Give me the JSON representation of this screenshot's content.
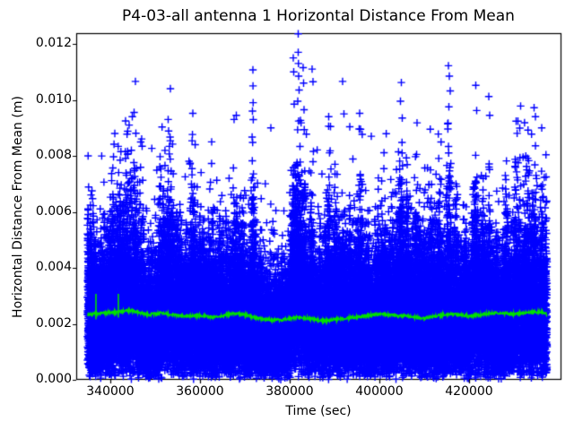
{
  "chart_data": {
    "type": "scatter",
    "title": "P4-03-all antenna 1 Horizontal Distance From Mean",
    "xlabel": "Time (sec)",
    "ylabel": "Horizontal Distance From Mean (m)",
    "grid": false,
    "legend": null,
    "xlim": [
      332400,
      440400
    ],
    "ylim": [
      0,
      0.012352
    ],
    "x_ticks": [
      340000,
      360000,
      380000,
      400000,
      420000
    ],
    "x_tick_labels": [
      "340000",
      "360000",
      "380000",
      "400000",
      "420000"
    ],
    "y_ticks": [
      0.0,
      0.002,
      0.004,
      0.006,
      0.008,
      0.01,
      0.012
    ],
    "y_tick_labels": [
      "0.000",
      "0.002",
      "0.004",
      "0.006",
      "0.008",
      "0.010",
      "0.012"
    ],
    "colors": {
      "scatter": "#0000ff",
      "mean_line": "#00e000",
      "frame": "#000000",
      "background": "#ffffff",
      "text": "#000000"
    },
    "series": [
      {
        "name": "horizontal-distance-scatter",
        "marker": "+",
        "color": "#0000ff",
        "t_range": [
          334900,
          437400
        ],
        "n_points": 34000,
        "distribution": {
          "kind": "rayleigh",
          "sigma_base": 0.00163,
          "hot_fraction": 0.035,
          "hot_scale": 1.55,
          "cap": 0.0093
        },
        "bursts": [
          [
            334900,
            250,
            1.5
          ],
          [
            336000,
            500,
            1.25
          ],
          [
            338500,
            400,
            1.2
          ],
          [
            340800,
            900,
            1.35
          ],
          [
            342500,
            600,
            1.3
          ],
          [
            344000,
            700,
            1.5
          ],
          [
            345600,
            400,
            1.55
          ],
          [
            347000,
            400,
            1.3
          ],
          [
            349000,
            300,
            1.15
          ],
          [
            351500,
            700,
            1.35
          ],
          [
            353300,
            600,
            1.5
          ],
          [
            355200,
            400,
            1.25
          ],
          [
            356800,
            300,
            1.2
          ],
          [
            358400,
            500,
            1.45
          ],
          [
            360200,
            400,
            1.25
          ],
          [
            362500,
            500,
            1.3
          ],
          [
            364500,
            300,
            1.25
          ],
          [
            366000,
            300,
            1.2
          ],
          [
            367800,
            600,
            1.45
          ],
          [
            369300,
            400,
            1.35
          ],
          [
            371800,
            350,
            1.75
          ],
          [
            373500,
            300,
            1.2
          ],
          [
            376000,
            400,
            1.15
          ],
          [
            378500,
            300,
            1.2
          ],
          [
            380800,
            400,
            1.65
          ],
          [
            382000,
            500,
            1.85
          ],
          [
            383200,
            400,
            1.6
          ],
          [
            384900,
            400,
            1.5
          ],
          [
            386600,
            300,
            1.3
          ],
          [
            388600,
            600,
            1.5
          ],
          [
            390400,
            400,
            1.45
          ],
          [
            391900,
            300,
            1.5
          ],
          [
            393500,
            300,
            1.3
          ],
          [
            395600,
            500,
            1.45
          ],
          [
            397500,
            300,
            1.25
          ],
          [
            399500,
            300,
            1.3
          ],
          [
            401100,
            400,
            1.35
          ],
          [
            402800,
            300,
            1.3
          ],
          [
            404600,
            500,
            1.6
          ],
          [
            406200,
            300,
            1.45
          ],
          [
            408300,
            400,
            1.35
          ],
          [
            410000,
            300,
            1.25
          ],
          [
            411500,
            400,
            1.4
          ],
          [
            413300,
            400,
            1.45
          ],
          [
            415500,
            400,
            1.65
          ],
          [
            417200,
            300,
            1.35
          ],
          [
            419000,
            300,
            1.3
          ],
          [
            421400,
            400,
            1.55
          ],
          [
            423200,
            400,
            1.4
          ],
          [
            424500,
            300,
            1.45
          ],
          [
            426100,
            300,
            1.3
          ],
          [
            428400,
            400,
            1.4
          ],
          [
            430600,
            500,
            1.5
          ],
          [
            432900,
            600,
            1.5
          ],
          [
            434600,
            400,
            1.45
          ],
          [
            436300,
            400,
            1.4
          ],
          [
            437200,
            250,
            1.35
          ]
        ],
        "dips": [
          [
            347600,
            349800,
            0.92
          ],
          [
            356000,
            357600,
            0.95
          ],
          [
            373000,
            379600,
            0.9
          ],
          [
            386000,
            387800,
            0.93
          ],
          [
            397000,
            399000,
            0.94
          ],
          [
            409400,
            410800,
            0.93
          ],
          [
            417600,
            420400,
            0.92
          ],
          [
            425400,
            427400,
            0.93
          ]
        ],
        "outliers": [
          [
            335050,
            0.008
          ],
          [
            341000,
            0.0088
          ],
          [
            343400,
            0.00925
          ],
          [
            344200,
            0.0091
          ],
          [
            344900,
            0.0094
          ],
          [
            345300,
            0.00955
          ],
          [
            345600,
            0.01066
          ],
          [
            352900,
            0.0093
          ],
          [
            353400,
            0.0104
          ],
          [
            358400,
            0.00952
          ],
          [
            362600,
            0.0085
          ],
          [
            367600,
            0.0093
          ],
          [
            368100,
            0.00945
          ],
          [
            371700,
            0.0096
          ],
          [
            371800,
            0.01107
          ],
          [
            371820,
            0.0105
          ],
          [
            371850,
            0.0099
          ],
          [
            375800,
            0.009
          ],
          [
            380800,
            0.0115
          ],
          [
            380900,
            0.011
          ],
          [
            381000,
            0.00985
          ],
          [
            381800,
            0.00995
          ],
          [
            381900,
            0.01236
          ],
          [
            381900,
            0.0117
          ],
          [
            381950,
            0.0113
          ],
          [
            382000,
            0.01085
          ],
          [
            382100,
            0.01035
          ],
          [
            383000,
            0.01115
          ],
          [
            383100,
            0.0106
          ],
          [
            383200,
            0.00965
          ],
          [
            385000,
            0.0111
          ],
          [
            385200,
            0.01065
          ],
          [
            388700,
            0.0094
          ],
          [
            389100,
            0.00905
          ],
          [
            391800,
            0.01066
          ],
          [
            392100,
            0.0095
          ],
          [
            395600,
            0.00952
          ],
          [
            395800,
            0.00895
          ],
          [
            398200,
            0.0087
          ],
          [
            404700,
            0.00995
          ],
          [
            404900,
            0.01062
          ],
          [
            405100,
            0.00935
          ],
          [
            408400,
            0.00918
          ],
          [
            415400,
            0.01122
          ],
          [
            415600,
            0.01085
          ],
          [
            415800,
            0.01032
          ],
          [
            415500,
            0.00975
          ],
          [
            421500,
            0.01052
          ],
          [
            421700,
            0.00962
          ],
          [
            424400,
            0.01012
          ],
          [
            424600,
            0.00945
          ],
          [
            430500,
            0.00924
          ],
          [
            430900,
            0.00924
          ],
          [
            431500,
            0.00978
          ],
          [
            434500,
            0.00972
          ],
          [
            434800,
            0.0094
          ],
          [
            436200,
            0.009
          ]
        ]
      },
      {
        "name": "running-mean-line",
        "marker": "line",
        "color": "#00e000",
        "jitter": 9e-05,
        "spikes": [
          [
            336800,
            0.00307
          ],
          [
            341800,
            0.00307
          ]
        ],
        "profile": [
          [
            335000,
            0.00232
          ],
          [
            336500,
            0.00236
          ],
          [
            338000,
            0.00238
          ],
          [
            340000,
            0.0024
          ],
          [
            342000,
            0.00243
          ],
          [
            344000,
            0.00248
          ],
          [
            345500,
            0.00245
          ],
          [
            347000,
            0.00238
          ],
          [
            348500,
            0.00233
          ],
          [
            350000,
            0.00236
          ],
          [
            351500,
            0.00238
          ],
          [
            353000,
            0.00234
          ],
          [
            355000,
            0.0023
          ],
          [
            357000,
            0.00228
          ],
          [
            359000,
            0.0023
          ],
          [
            361000,
            0.00227
          ],
          [
            363000,
            0.00223
          ],
          [
            365000,
            0.00228
          ],
          [
            366500,
            0.00234
          ],
          [
            368000,
            0.00239
          ],
          [
            369500,
            0.00234
          ],
          [
            371000,
            0.00228
          ],
          [
            372500,
            0.00222
          ],
          [
            374000,
            0.00217
          ],
          [
            376000,
            0.00214
          ],
          [
            378000,
            0.00214
          ],
          [
            380000,
            0.00218
          ],
          [
            381500,
            0.00223
          ],
          [
            383000,
            0.00222
          ],
          [
            384500,
            0.00219
          ],
          [
            386000,
            0.00214
          ],
          [
            388000,
            0.00211
          ],
          [
            390000,
            0.00215
          ],
          [
            392000,
            0.00219
          ],
          [
            394000,
            0.00222
          ],
          [
            396000,
            0.00226
          ],
          [
            398000,
            0.00231
          ],
          [
            400000,
            0.00236
          ],
          [
            402000,
            0.00233
          ],
          [
            404000,
            0.00229
          ],
          [
            406000,
            0.00229
          ],
          [
            408000,
            0.00223
          ],
          [
            410000,
            0.0022
          ],
          [
            412000,
            0.00226
          ],
          [
            414000,
            0.00231
          ],
          [
            416000,
            0.00236
          ],
          [
            418000,
            0.00231
          ],
          [
            420000,
            0.00228
          ],
          [
            422000,
            0.00231
          ],
          [
            424000,
            0.00236
          ],
          [
            426000,
            0.0024
          ],
          [
            428000,
            0.00237
          ],
          [
            430000,
            0.00235
          ],
          [
            431500,
            0.00238
          ],
          [
            433000,
            0.0024
          ],
          [
            434500,
            0.00241
          ],
          [
            436000,
            0.00243
          ],
          [
            437000,
            0.00238
          ],
          [
            437400,
            0.00232
          ]
        ]
      }
    ]
  }
}
